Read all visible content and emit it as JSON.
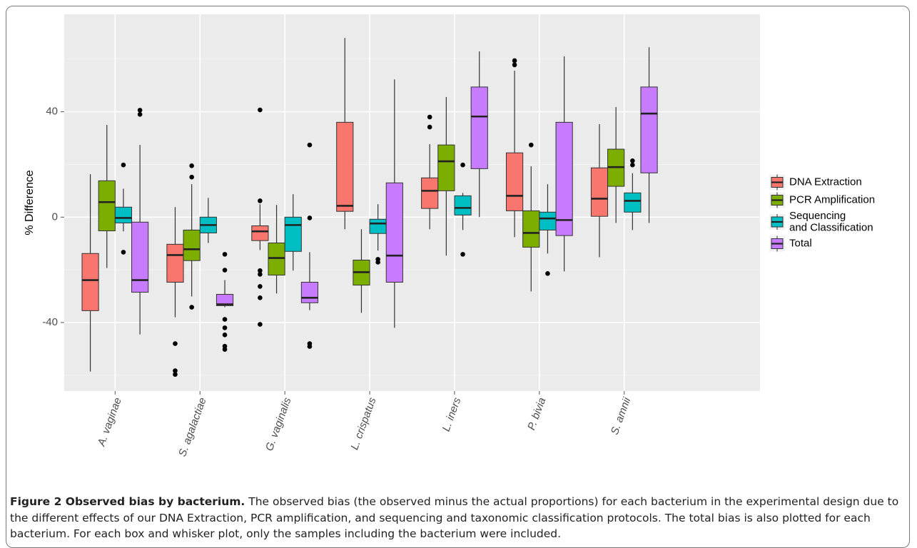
{
  "chart_data": {
    "type": "box",
    "ylabel": "% Difference",
    "categories": [
      "A. vaginae",
      "S. agalactiae",
      "G. vaginalis",
      "L. crispatus",
      "L. iners",
      "P. bivia",
      "S. amnii"
    ],
    "ylim": [
      -66,
      77
    ],
    "yticks": [
      -40,
      0,
      40
    ],
    "grid": true,
    "legend": "right",
    "series": [
      {
        "name": "DNA Extraction",
        "color": "#F8766D",
        "values": [
          {
            "whislo": -58.6,
            "q1": -35.5,
            "med": -23.9,
            "q3": -13.8,
            "whishi": 16.3,
            "fliers": []
          },
          {
            "whislo": -38,
            "q1": -24.7,
            "med": -14.4,
            "q3": -10.3,
            "whishi": 3.8,
            "fliers": [
              -48,
              -58.3,
              -59.7
            ]
          },
          {
            "whislo": -12.5,
            "q1": -8.9,
            "med": -5.4,
            "q3": -3.3,
            "whishi": 4.9,
            "fliers": [
              40.7,
              6.2,
              -20.3,
              -21.7,
              -26.3,
              -30.6,
              -40.7
            ]
          },
          {
            "whislo": -4.6,
            "q1": 2.2,
            "med": 4.3,
            "q3": 36,
            "whishi": 68,
            "fliers": []
          },
          {
            "whislo": -4.6,
            "q1": 3.3,
            "med": 10,
            "q3": 14.9,
            "whishi": 27.7,
            "fliers": [
              38,
              34.2
            ]
          },
          {
            "whislo": -7.6,
            "q1": 2.4,
            "med": 8.1,
            "q3": 24.4,
            "whishi": 55.6,
            "fliers": [
              59.4,
              57.8
            ]
          },
          {
            "whislo": -15.2,
            "q1": 0.3,
            "med": 7,
            "q3": 18.7,
            "whishi": 35.3,
            "fliers": []
          }
        ]
      },
      {
        "name": "PCR Amplification",
        "color": "#7CAE00",
        "values": [
          {
            "whislo": -19.3,
            "q1": -5.2,
            "med": 5.7,
            "q3": 13.8,
            "whishi": 35,
            "fliers": []
          },
          {
            "whislo": -30.1,
            "q1": -16.5,
            "med": -12.2,
            "q3": -4.9,
            "whishi": 12.5,
            "fliers": [
              19.5,
              15.2,
              -34.2
            ]
          },
          {
            "whislo": -29,
            "q1": -22,
            "med": -15.5,
            "q3": -9.8,
            "whishi": 4.6,
            "fliers": []
          },
          {
            "whislo": -36.3,
            "q1": -25.8,
            "med": -20.9,
            "q3": -16.3,
            "whishi": -4.6,
            "fliers": []
          },
          {
            "whislo": -14.6,
            "q1": 10,
            "med": 21.2,
            "q3": 27.4,
            "whishi": 45.6,
            "fliers": []
          },
          {
            "whislo": -28.2,
            "q1": -11.4,
            "med": -6,
            "q3": 2.4,
            "whishi": 19.3,
            "fliers": [
              27.4
            ]
          },
          {
            "whislo": -2.2,
            "q1": 11.7,
            "med": 19,
            "q3": 25.8,
            "whishi": 41.8,
            "fliers": []
          }
        ]
      },
      {
        "name": "Sequencing\nand Classification",
        "color": "#00BFC4",
        "values": [
          {
            "whislo": -5.4,
            "q1": -2.2,
            "med": -0.3,
            "q3": 3.8,
            "whishi": 10.8,
            "fliers": [
              19.8,
              -13.3
            ]
          },
          {
            "whislo": -9.8,
            "q1": -6,
            "med": -3,
            "q3": 0,
            "whishi": 7.3,
            "fliers": []
          },
          {
            "whislo": -20.3,
            "q1": -13,
            "med": -3,
            "q3": 0,
            "whishi": 8.7,
            "fliers": []
          },
          {
            "whislo": -12.7,
            "q1": -6.2,
            "med": -2.4,
            "q3": -0.8,
            "whishi": 4.9,
            "fliers": [
              -16,
              -17.1
            ]
          },
          {
            "whislo": -4.9,
            "q1": 0.8,
            "med": 3.5,
            "q3": 8.1,
            "whishi": 9.2,
            "fliers": [
              19.8,
              -14.1
            ]
          },
          {
            "whislo": -13.8,
            "q1": -4.9,
            "med": -0.5,
            "q3": 1.9,
            "whishi": 12.5,
            "fliers": [
              -21.4
            ]
          },
          {
            "whislo": -4.9,
            "q1": 1.9,
            "med": 6.2,
            "q3": 9.2,
            "whishi": 16.7,
            "fliers": [
              21.4,
              19.8
            ]
          }
        ]
      },
      {
        "name": "Total",
        "color": "#C77CFF",
        "values": [
          {
            "whislo": -44.5,
            "q1": -28.5,
            "med": -23.9,
            "q3": -1.9,
            "whishi": 27.4,
            "fliers": [
              40.6,
              39
            ]
          },
          {
            "whislo": -34.2,
            "q1": -33.6,
            "med": -33.1,
            "q3": -29.3,
            "whishi": -23.9,
            "fliers": [
              -14.1,
              -20.1,
              -38.8,
              -42,
              -44.7,
              -49,
              -50.2
            ]
          },
          {
            "whislo": -35.3,
            "q1": -32.5,
            "med": -30.6,
            "q3": -24.7,
            "whishi": -13.3,
            "fliers": [
              27.4,
              -0.3,
              -48,
              -49.1
            ]
          },
          {
            "whislo": -42,
            "q1": -24.7,
            "med": -14.6,
            "q3": 13,
            "whishi": 52.3,
            "fliers": []
          },
          {
            "whislo": 0,
            "q1": 18.4,
            "med": 38.2,
            "q3": 49.4,
            "whishi": 62.9,
            "fliers": []
          },
          {
            "whislo": -20.6,
            "q1": -7,
            "med": -1.1,
            "q3": 36,
            "whishi": 61,
            "fliers": []
          },
          {
            "whislo": -2.2,
            "q1": 16.8,
            "med": 39.3,
            "q3": 49.4,
            "whishi": 64.5,
            "fliers": []
          }
        ]
      }
    ]
  },
  "caption": {
    "title": "Figure 2 Observed bias by bacterium.",
    "text": "The observed bias (the observed minus the actual proportions) for each bacterium in the experimental design due to the different effects of our DNA Extraction, PCR amplification, and sequencing and taxonomic classification protocols. The total bias is also plotted for each bacterium. For each box and whisker plot, only the samples including the bacterium were included."
  }
}
